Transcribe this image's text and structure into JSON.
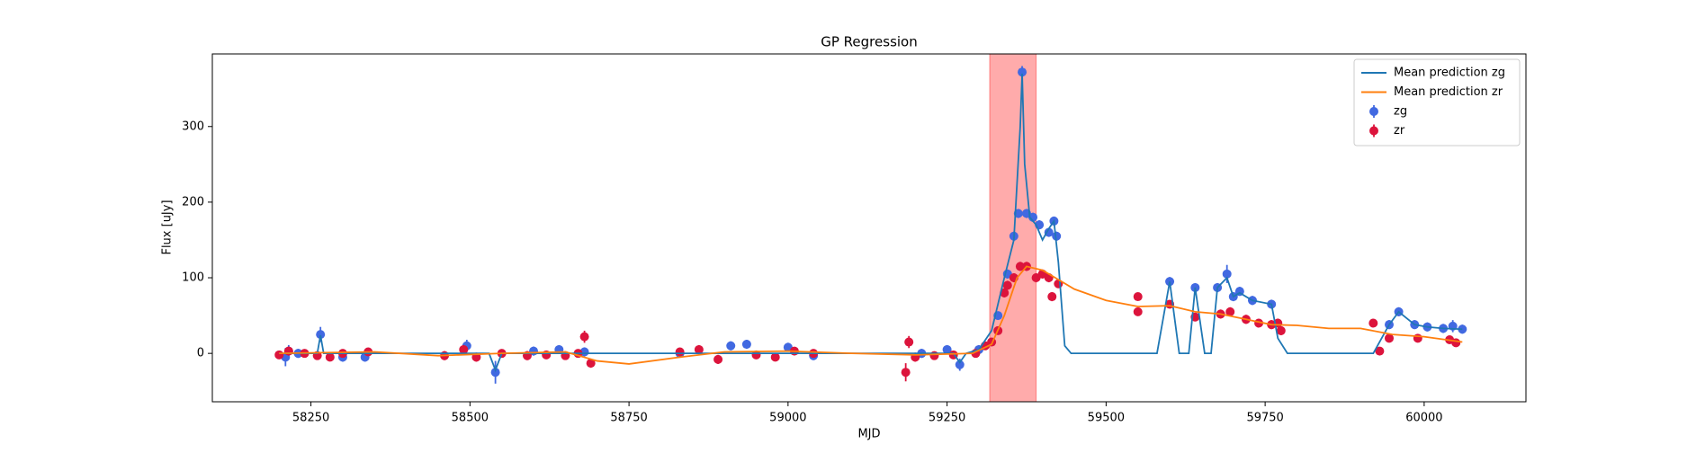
{
  "chart_data": {
    "type": "line",
    "title": "GP Regression",
    "xlabel": "MJD",
    "ylabel": "Flux [uJy]",
    "xlim": [
      58095,
      60160
    ],
    "ylim": [
      -64,
      396
    ],
    "xticks": [
      58250,
      58500,
      58750,
      59000,
      59250,
      59500,
      59750,
      60000
    ],
    "yticks": [
      0,
      100,
      200,
      300
    ],
    "legend": "upper right",
    "span": [
      59317,
      59390
    ],
    "span_color": "#ff0000",
    "series": [
      {
        "name": "Mean prediction zg",
        "type": "line",
        "color": "#1f77b4",
        "x": [
          58200,
          58260,
          58265,
          58270,
          58530,
          58540,
          58550,
          59260,
          59270,
          59280,
          59300,
          59320,
          59340,
          59355,
          59365,
          59368,
          59372,
          59380,
          59390,
          59400,
          59410,
          59418,
          59425,
          59435,
          59445,
          59580,
          59600,
          59615,
          59630,
          59640,
          59655,
          59665,
          59675,
          59690,
          59700,
          59710,
          59730,
          59760,
          59770,
          59785,
          59920,
          59945,
          59960,
          59985,
          60005,
          60030,
          60060
        ],
        "values": [
          0,
          0,
          24,
          0,
          0,
          -22,
          0,
          0,
          -12,
          0,
          5,
          30,
          100,
          150,
          300,
          370,
          250,
          180,
          170,
          150,
          165,
          175,
          120,
          10,
          0,
          0,
          95,
          0,
          0,
          87,
          0,
          0,
          87,
          100,
          75,
          80,
          70,
          65,
          20,
          0,
          0,
          38,
          55,
          38,
          35,
          33,
          32
        ]
      },
      {
        "name": "Mean prediction zr",
        "type": "line",
        "color": "#ff7f0e",
        "x": [
          58200,
          58350,
          58450,
          58550,
          58650,
          58700,
          58750,
          58830,
          58900,
          59000,
          59100,
          59200,
          59290,
          59320,
          59340,
          59360,
          59375,
          59400,
          59420,
          59450,
          59500,
          59550,
          59600,
          59640,
          59680,
          59720,
          59760,
          59800,
          59850,
          59900,
          59950,
          60000,
          60060
        ],
        "values": [
          0,
          2,
          -3,
          0,
          2,
          -10,
          -14,
          -5,
          2,
          3,
          0,
          -2,
          0,
          12,
          50,
          100,
          115,
          110,
          100,
          85,
          70,
          62,
          63,
          55,
          52,
          45,
          38,
          37,
          33,
          33,
          25,
          22,
          15
        ]
      },
      {
        "name": "zg",
        "type": "errorbar",
        "color": "#4169e1",
        "x": [
          58210,
          58215,
          58230,
          58265,
          58300,
          58335,
          58495,
          58540,
          58600,
          58640,
          58680,
          58830,
          58910,
          58935,
          59000,
          59040,
          59210,
          59250,
          59270,
          59300,
          59330,
          59345,
          59355,
          59362,
          59368,
          59375,
          59385,
          59395,
          59410,
          59418,
          59422,
          59600,
          59640,
          59675,
          59690,
          59700,
          59710,
          59730,
          59760,
          59945,
          59960,
          59985,
          60005,
          60030,
          60045,
          60060
        ],
        "values": [
          -5,
          3,
          0,
          25,
          -5,
          -5,
          10,
          -25,
          3,
          5,
          2,
          0,
          10,
          12,
          8,
          -3,
          0,
          5,
          -15,
          5,
          50,
          105,
          155,
          185,
          372,
          185,
          180,
          170,
          160,
          175,
          155,
          95,
          87,
          87,
          105,
          75,
          82,
          70,
          65,
          38,
          55,
          38,
          35,
          33,
          36,
          32
        ],
        "errors": [
          12,
          8,
          6,
          10,
          6,
          6,
          8,
          15,
          6,
          6,
          6,
          5,
          6,
          6,
          6,
          6,
          6,
          6,
          8,
          6,
          5,
          6,
          6,
          6,
          8,
          6,
          6,
          6,
          6,
          6,
          6,
          6,
          6,
          6,
          12,
          6,
          6,
          6,
          6,
          6,
          6,
          6,
          6,
          6,
          8,
          6
        ]
      },
      {
        "name": "zr",
        "type": "errorbar",
        "color": "#dc143c",
        "x": [
          58200,
          58215,
          58240,
          58260,
          58280,
          58300,
          58340,
          58460,
          58490,
          58510,
          58550,
          58590,
          58620,
          58650,
          58670,
          58680,
          58690,
          58830,
          58860,
          58890,
          58950,
          58980,
          59010,
          59040,
          59185,
          59190,
          59200,
          59230,
          59260,
          59295,
          59310,
          59320,
          59330,
          59340,
          59345,
          59355,
          59365,
          59375,
          59390,
          59400,
          59410,
          59415,
          59425,
          59550,
          59550,
          59600,
          59640,
          59680,
          59695,
          59720,
          59740,
          59760,
          59770,
          59775,
          59920,
          59930,
          59945,
          59990,
          60040,
          60050
        ],
        "values": [
          -2,
          3,
          0,
          -3,
          -5,
          0,
          2,
          -3,
          5,
          -5,
          0,
          -3,
          -2,
          -3,
          0,
          22,
          -13,
          2,
          5,
          -8,
          -2,
          -5,
          3,
          0,
          -25,
          15,
          -5,
          -3,
          -2,
          0,
          10,
          15,
          30,
          80,
          90,
          100,
          115,
          115,
          100,
          105,
          100,
          75,
          92,
          75,
          55,
          65,
          48,
          52,
          55,
          45,
          40,
          38,
          40,
          30,
          40,
          3,
          20,
          20,
          18,
          14
        ],
        "errors": [
          5,
          6,
          5,
          5,
          5,
          5,
          5,
          6,
          6,
          6,
          5,
          6,
          5,
          5,
          5,
          8,
          6,
          5,
          6,
          6,
          5,
          5,
          5,
          5,
          12,
          8,
          6,
          5,
          5,
          5,
          5,
          5,
          5,
          6,
          6,
          6,
          6,
          6,
          6,
          6,
          6,
          6,
          5,
          5,
          5,
          5,
          5,
          6,
          6,
          6,
          5,
          6,
          6,
          6,
          5,
          5,
          5,
          5,
          5,
          5
        ]
      }
    ]
  }
}
